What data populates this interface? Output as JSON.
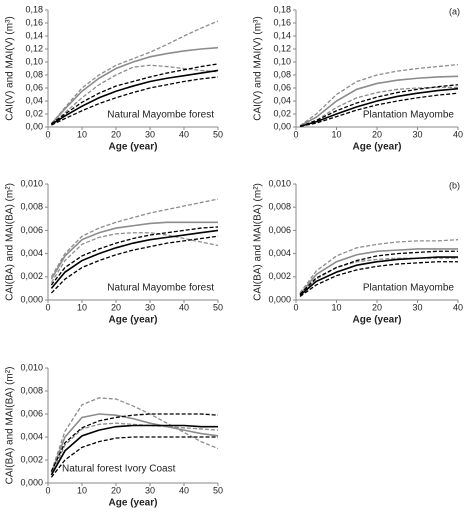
{
  "chart_data": [
    {
      "type": "line",
      "panel_label": "",
      "annotation": "Natural Mayombe forest",
      "xlabel": "Age (year)",
      "ylabel": "CAI(V) and MAI(V) (m³)",
      "x": [
        1,
        5,
        10,
        15,
        20,
        25,
        30,
        35,
        40,
        45,
        50
      ],
      "xlim": [
        0,
        50
      ],
      "xticks": [
        0,
        10,
        20,
        30,
        40,
        50
      ],
      "ylim": [
        0,
        0.18
      ],
      "yticks": [
        {
          "value": 0,
          "label": "0,00"
        },
        {
          "value": 0.02,
          "label": "0,02"
        },
        {
          "value": 0.04,
          "label": "0,04"
        },
        {
          "value": 0.06,
          "label": "0,06"
        },
        {
          "value": 0.08,
          "label": "0,08"
        },
        {
          "value": 0.1,
          "label": "0,10"
        },
        {
          "value": 0.12,
          "label": "0,12"
        },
        {
          "value": 0.14,
          "label": "0,14"
        },
        {
          "value": 0.16,
          "label": "0,16"
        },
        {
          "value": 0.18,
          "label": "0,18"
        }
      ],
      "series": [
        {
          "color": "#8c8c8c",
          "dash": true,
          "values": [
            0.005,
            0.03,
            0.06,
            0.08,
            0.095,
            0.105,
            0.115,
            0.127,
            0.14,
            0.152,
            0.163
          ]
        },
        {
          "color": "#8c8c8c",
          "dash": false,
          "values": [
            0.005,
            0.028,
            0.055,
            0.075,
            0.09,
            0.1,
            0.108,
            0.113,
            0.117,
            0.12,
            0.122
          ]
        },
        {
          "color": "#8c8c8c",
          "dash": true,
          "values": [
            0.004,
            0.022,
            0.045,
            0.065,
            0.08,
            0.092,
            0.095,
            0.093,
            0.09,
            0.087,
            0.085
          ]
        },
        {
          "color": "#000000",
          "dash": true,
          "values": [
            0.005,
            0.02,
            0.038,
            0.052,
            0.063,
            0.07,
            0.077,
            0.083,
            0.088,
            0.093,
            0.097
          ]
        },
        {
          "color": "#000000",
          "dash": false,
          "values": [
            0.004,
            0.017,
            0.032,
            0.045,
            0.055,
            0.063,
            0.07,
            0.075,
            0.079,
            0.083,
            0.087
          ]
        },
        {
          "color": "#000000",
          "dash": true,
          "values": [
            0.003,
            0.013,
            0.025,
            0.036,
            0.045,
            0.053,
            0.06,
            0.065,
            0.07,
            0.074,
            0.077
          ]
        }
      ]
    },
    {
      "type": "line",
      "panel_label": "(a)",
      "annotation": "Plantation Mayombe",
      "xlabel": "Age (year)",
      "ylabel": "CAI(V) and MAI(V) (m³)",
      "x": [
        1,
        5,
        10,
        15,
        20,
        25,
        30,
        35,
        40
      ],
      "xlim": [
        0,
        40
      ],
      "xticks": [
        0,
        10,
        20,
        30,
        40
      ],
      "ylim": [
        0,
        0.18
      ],
      "yticks": [
        {
          "value": 0,
          "label": "0,00"
        },
        {
          "value": 0.02,
          "label": "0,02"
        },
        {
          "value": 0.04,
          "label": "0,04"
        },
        {
          "value": 0.06,
          "label": "0,06"
        },
        {
          "value": 0.08,
          "label": "0,08"
        },
        {
          "value": 0.1,
          "label": "0,10"
        },
        {
          "value": 0.12,
          "label": "0,12"
        },
        {
          "value": 0.14,
          "label": "0,14"
        },
        {
          "value": 0.16,
          "label": "0,16"
        },
        {
          "value": 0.18,
          "label": "0,18"
        }
      ],
      "series": [
        {
          "color": "#8c8c8c",
          "dash": true,
          "values": [
            0.002,
            0.02,
            0.05,
            0.07,
            0.08,
            0.086,
            0.09,
            0.093,
            0.096
          ]
        },
        {
          "color": "#8c8c8c",
          "dash": false,
          "values": [
            0.002,
            0.015,
            0.04,
            0.058,
            0.067,
            0.072,
            0.075,
            0.077,
            0.078
          ]
        },
        {
          "color": "#8c8c8c",
          "dash": true,
          "values": [
            0.001,
            0.01,
            0.03,
            0.045,
            0.053,
            0.058,
            0.06,
            0.061,
            0.061
          ]
        },
        {
          "color": "#000000",
          "dash": true,
          "values": [
            0.001,
            0.01,
            0.025,
            0.037,
            0.046,
            0.053,
            0.058,
            0.062,
            0.065
          ]
        },
        {
          "color": "#000000",
          "dash": false,
          "values": [
            0.001,
            0.008,
            0.02,
            0.031,
            0.04,
            0.047,
            0.052,
            0.056,
            0.059
          ]
        },
        {
          "color": "#000000",
          "dash": true,
          "values": [
            0.001,
            0.006,
            0.016,
            0.026,
            0.034,
            0.04,
            0.045,
            0.049,
            0.052
          ]
        }
      ]
    },
    {
      "type": "line",
      "panel_label": "",
      "annotation": "Natural Mayombe forest",
      "xlabel": "Age (year)",
      "ylabel": "CAI(BA) and MAI(BA) (m²)",
      "x": [
        1,
        5,
        10,
        15,
        20,
        25,
        30,
        35,
        40,
        45,
        50
      ],
      "xlim": [
        0,
        50
      ],
      "xticks": [
        0,
        10,
        20,
        30,
        40,
        50
      ],
      "ylim": [
        0,
        0.01
      ],
      "yticks": [
        {
          "value": 0,
          "label": "0,000"
        },
        {
          "value": 0.002,
          "label": "0,002"
        },
        {
          "value": 0.004,
          "label": "0,004"
        },
        {
          "value": 0.006,
          "label": "0,006"
        },
        {
          "value": 0.008,
          "label": "0,008"
        },
        {
          "value": 0.01,
          "label": "0,010"
        }
      ],
      "series": [
        {
          "color": "#8c8c8c",
          "dash": true,
          "values": [
            0.002,
            0.004,
            0.0055,
            0.0062,
            0.0067,
            0.0071,
            0.0075,
            0.0078,
            0.0081,
            0.0084,
            0.0087
          ]
        },
        {
          "color": "#8c8c8c",
          "dash": false,
          "values": [
            0.0018,
            0.0038,
            0.0052,
            0.0058,
            0.0062,
            0.0064,
            0.0066,
            0.0067,
            0.0067,
            0.0067,
            0.0067
          ]
        },
        {
          "color": "#8c8c8c",
          "dash": true,
          "values": [
            0.0015,
            0.0034,
            0.0048,
            0.0054,
            0.0057,
            0.0058,
            0.0058,
            0.0056,
            0.0053,
            0.005,
            0.0047
          ]
        },
        {
          "color": "#000000",
          "dash": true,
          "values": [
            0.0013,
            0.0028,
            0.0038,
            0.0044,
            0.0049,
            0.0053,
            0.0056,
            0.0058,
            0.006,
            0.0062,
            0.0063
          ]
        },
        {
          "color": "#000000",
          "dash": false,
          "values": [
            0.001,
            0.0024,
            0.0034,
            0.004,
            0.0045,
            0.0049,
            0.0052,
            0.0054,
            0.0056,
            0.0058,
            0.006
          ]
        },
        {
          "color": "#000000",
          "dash": true,
          "values": [
            0.0006,
            0.0018,
            0.0028,
            0.0034,
            0.0039,
            0.0043,
            0.0046,
            0.0049,
            0.0051,
            0.0053,
            0.0055
          ]
        }
      ]
    },
    {
      "type": "line",
      "panel_label": "(b)",
      "annotation": "Plantation Mayombe",
      "xlabel": "Age (year)",
      "ylabel": "CAI(BA) and MAI(BA) (m²)",
      "x": [
        1,
        5,
        10,
        15,
        20,
        25,
        30,
        35,
        40
      ],
      "xlim": [
        0,
        40
      ],
      "xticks": [
        0,
        10,
        20,
        30,
        40
      ],
      "ylim": [
        0,
        0.01
      ],
      "yticks": [
        {
          "value": 0,
          "label": "0,000"
        },
        {
          "value": 0.002,
          "label": "0,002"
        },
        {
          "value": 0.004,
          "label": "0,004"
        },
        {
          "value": 0.006,
          "label": "0,006"
        },
        {
          "value": 0.008,
          "label": "0,008"
        },
        {
          "value": 0.01,
          "label": "0,010"
        }
      ],
      "series": [
        {
          "color": "#8c8c8c",
          "dash": true,
          "values": [
            0.0006,
            0.0025,
            0.0038,
            0.0045,
            0.0048,
            0.005,
            0.0051,
            0.0051,
            0.0052
          ]
        },
        {
          "color": "#8c8c8c",
          "dash": false,
          "values": [
            0.0005,
            0.0022,
            0.0033,
            0.0039,
            0.0042,
            0.0043,
            0.0044,
            0.0044,
            0.0044
          ]
        },
        {
          "color": "#8c8c8c",
          "dash": true,
          "values": [
            0.0004,
            0.0018,
            0.0028,
            0.0033,
            0.0035,
            0.0036,
            0.0036,
            0.0036,
            0.0036
          ]
        },
        {
          "color": "#000000",
          "dash": true,
          "values": [
            0.0005,
            0.0019,
            0.0028,
            0.0034,
            0.0038,
            0.004,
            0.0041,
            0.0042,
            0.0042
          ]
        },
        {
          "color": "#000000",
          "dash": false,
          "values": [
            0.0004,
            0.0016,
            0.0024,
            0.003,
            0.0033,
            0.0035,
            0.0036,
            0.0037,
            0.0037
          ]
        },
        {
          "color": "#000000",
          "dash": true,
          "values": [
            0.0003,
            0.0013,
            0.0021,
            0.0026,
            0.0029,
            0.0031,
            0.0032,
            0.0033,
            0.0033
          ]
        }
      ]
    },
    {
      "type": "line",
      "panel_label": "",
      "annotation": "Natural forest Ivory  Coast",
      "xlabel": "Age (year)",
      "ylabel": "CAI(BA) and MAI(BA) (m²)",
      "x": [
        1,
        5,
        10,
        15,
        20,
        25,
        30,
        35,
        40,
        45,
        50
      ],
      "xlim": [
        0,
        50
      ],
      "xticks": [
        0,
        10,
        20,
        30,
        40,
        50
      ],
      "ylim": [
        0,
        0.01
      ],
      "yticks": [
        {
          "value": 0,
          "label": "0,000"
        },
        {
          "value": 0.002,
          "label": "0,002"
        },
        {
          "value": 0.004,
          "label": "0,004"
        },
        {
          "value": 0.006,
          "label": "0,006"
        },
        {
          "value": 0.008,
          "label": "0,008"
        },
        {
          "value": 0.01,
          "label": "0,010"
        }
      ],
      "series": [
        {
          "color": "#8c8c8c",
          "dash": true,
          "values": [
            0.001,
            0.0045,
            0.0068,
            0.0074,
            0.0073,
            0.0067,
            0.006,
            0.0052,
            0.0044,
            0.0036,
            0.003
          ]
        },
        {
          "color": "#8c8c8c",
          "dash": false,
          "values": [
            0.0009,
            0.004,
            0.0057,
            0.006,
            0.0059,
            0.0056,
            0.0052,
            0.0049,
            0.0046,
            0.0043,
            0.0041
          ]
        },
        {
          "color": "#8c8c8c",
          "dash": true,
          "values": [
            0.0007,
            0.0033,
            0.0047,
            0.0051,
            0.0052,
            0.0051,
            0.005,
            0.0049,
            0.0048,
            0.0047,
            0.0046
          ]
        },
        {
          "color": "#000000",
          "dash": true,
          "values": [
            0.001,
            0.0035,
            0.0048,
            0.0054,
            0.0057,
            0.0059,
            0.006,
            0.006,
            0.006,
            0.006,
            0.0059
          ]
        },
        {
          "color": "#000000",
          "dash": false,
          "values": [
            0.0007,
            0.0028,
            0.0041,
            0.0046,
            0.0049,
            0.005,
            0.005,
            0.005,
            0.005,
            0.0049,
            0.0049
          ]
        },
        {
          "color": "#000000",
          "dash": true,
          "values": [
            0.0005,
            0.002,
            0.0031,
            0.0036,
            0.0039,
            0.004,
            0.004,
            0.004,
            0.004,
            0.004,
            0.004
          ]
        }
      ]
    }
  ]
}
